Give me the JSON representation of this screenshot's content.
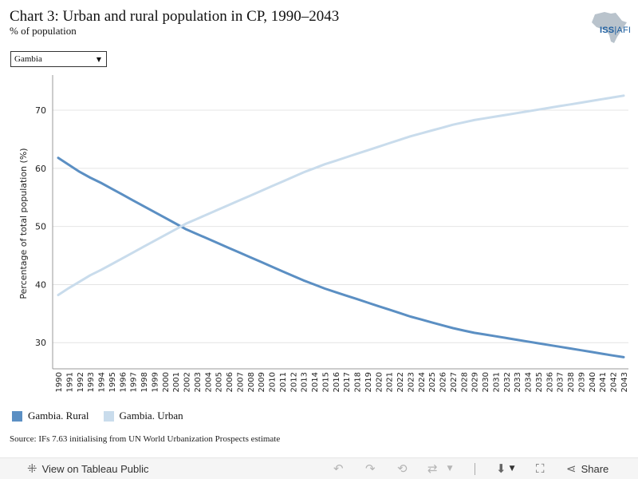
{
  "header": {
    "title": "Chart 3: Urban and rural population in CP, 1990–2043",
    "subtitle": "% of population"
  },
  "logo": {
    "text_iss": "ISS",
    "text_afi": "AFI"
  },
  "filter": {
    "selected": "Gambia"
  },
  "legend": {
    "rural_label": "Gambia. Rural",
    "urban_label": "Gambia. Urban"
  },
  "source": "Source: IFs 7.63 initialising from UN World Urbanization Prospects estimate",
  "toolbar": {
    "view_label": "View on Tableau Public",
    "share_label": "Share"
  },
  "colors": {
    "rural": "#5b8fc3",
    "urban": "#c9dcec",
    "grid": "#e4e4e4"
  },
  "chart_data": {
    "type": "line",
    "ylabel": "Percentage of total population (%)",
    "ylim": [
      25.5,
      75.5
    ],
    "yticks": [
      30,
      40,
      50,
      60,
      70
    ],
    "x": [
      1990,
      1991,
      1992,
      1993,
      1994,
      1995,
      1996,
      1997,
      1998,
      1999,
      2000,
      2001,
      2002,
      2003,
      2004,
      2005,
      2006,
      2007,
      2008,
      2009,
      2010,
      2011,
      2012,
      2013,
      2014,
      2015,
      2016,
      2017,
      2018,
      2019,
      2020,
      2021,
      2022,
      2023,
      2024,
      2025,
      2026,
      2027,
      2028,
      2029,
      2030,
      2031,
      2032,
      2033,
      2034,
      2035,
      2036,
      2037,
      2038,
      2039,
      2040,
      2041,
      2042,
      2043
    ],
    "series": [
      {
        "name": "Gambia. Rural",
        "values": [
          61.8,
          60.6,
          59.4,
          58.4,
          57.5,
          56.5,
          55.5,
          54.5,
          53.5,
          52.5,
          51.5,
          50.5,
          49.5,
          48.7,
          47.9,
          47.1,
          46.3,
          45.5,
          44.7,
          43.9,
          43.1,
          42.3,
          41.5,
          40.7,
          40.0,
          39.3,
          38.7,
          38.1,
          37.5,
          36.9,
          36.3,
          35.7,
          35.1,
          34.5,
          34.0,
          33.5,
          33.0,
          32.5,
          32.1,
          31.7,
          31.4,
          31.1,
          30.8,
          30.5,
          30.2,
          29.9,
          29.6,
          29.3,
          29.0,
          28.7,
          28.4,
          28.1,
          27.8,
          27.5
        ]
      },
      {
        "name": "Gambia. Urban",
        "values": [
          38.2,
          39.4,
          40.5,
          41.6,
          42.5,
          43.5,
          44.5,
          45.5,
          46.5,
          47.5,
          48.5,
          49.5,
          50.5,
          51.3,
          52.1,
          52.9,
          53.7,
          54.5,
          55.3,
          56.1,
          56.9,
          57.7,
          58.5,
          59.3,
          60.0,
          60.7,
          61.3,
          61.9,
          62.5,
          63.1,
          63.7,
          64.3,
          64.9,
          65.5,
          66.0,
          66.5,
          67.0,
          67.5,
          67.9,
          68.3,
          68.6,
          68.9,
          69.2,
          69.5,
          69.8,
          70.1,
          70.4,
          70.7,
          71.0,
          71.3,
          71.6,
          71.9,
          72.2,
          72.5
        ]
      }
    ]
  }
}
